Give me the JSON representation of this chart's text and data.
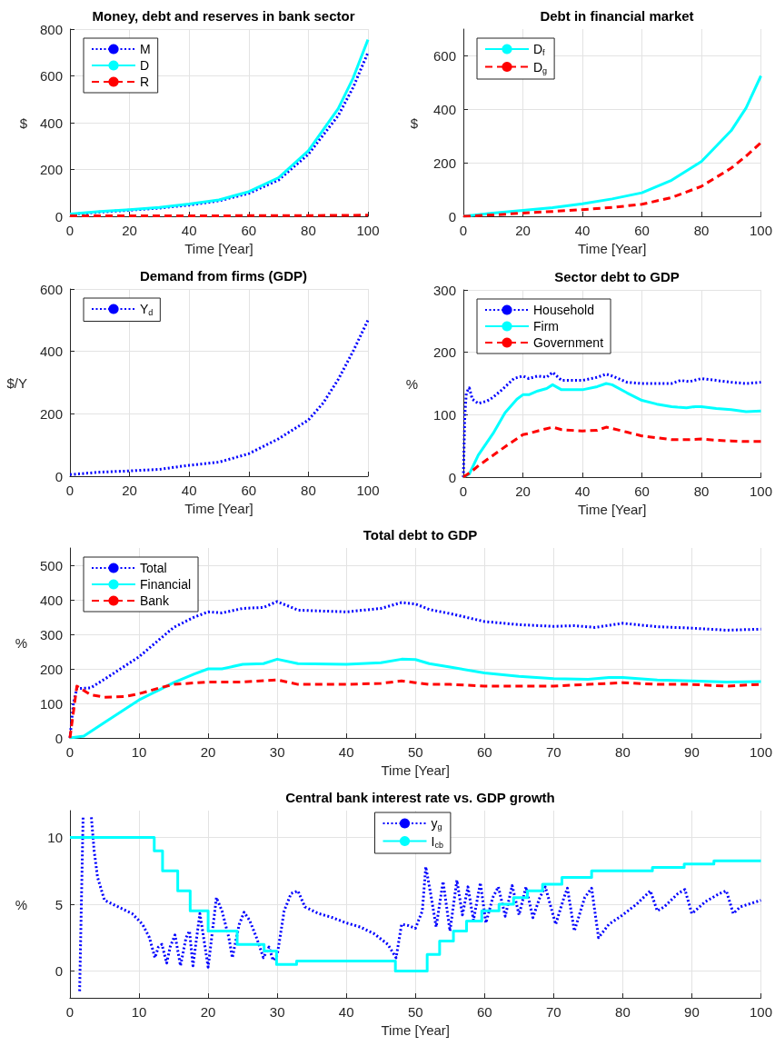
{
  "chart_data": [
    {
      "type": "line",
      "title": "Money, debt and reserves in bank sector",
      "xlabel": "Time [Year]",
      "ylabel": "$",
      "xlim": [
        0,
        100
      ],
      "xticks": [
        0,
        20,
        40,
        60,
        80,
        100
      ],
      "ylim": [
        0,
        800
      ],
      "yticks": [
        0,
        200,
        400,
        600,
        800
      ],
      "grid": true,
      "legend": "top left",
      "x": [
        0,
        10,
        20,
        30,
        40,
        50,
        60,
        70,
        80,
        90,
        95,
        100
      ],
      "series": [
        {
          "name": "M",
          "color": "#0000ff",
          "line_style": "dotted",
          "values": [
            8,
            18,
            26,
            35,
            48,
            66,
            98,
            155,
            265,
            430,
            550,
            700
          ]
        },
        {
          "name": "D",
          "color": "#00ffff",
          "line_style": "solid",
          "values": [
            10,
            20,
            28,
            38,
            52,
            70,
            105,
            165,
            280,
            460,
            590,
            755
          ]
        },
        {
          "name": "R",
          "color": "#ff0000",
          "line_style": "dashed",
          "values": [
            2,
            2,
            2,
            2,
            2,
            2,
            3,
            3,
            3,
            4,
            4,
            5
          ]
        }
      ]
    },
    {
      "type": "line",
      "title": "Debt in financial market",
      "xlabel": "Time [Year]",
      "ylabel": "$",
      "xlim": [
        0,
        100
      ],
      "xticks": [
        0,
        20,
        40,
        60,
        80,
        100
      ],
      "ylim": [
        0,
        700
      ],
      "yticks": [
        0,
        200,
        400,
        600
      ],
      "grid": true,
      "legend": "top left",
      "x": [
        0,
        10,
        20,
        30,
        40,
        50,
        60,
        70,
        80,
        90,
        95,
        100
      ],
      "series": [
        {
          "name": "D$_{f}$",
          "color": "#00ffff",
          "line_style": "solid",
          "values": [
            0,
            12,
            22,
            32,
            47,
            65,
            88,
            135,
            205,
            320,
            405,
            525
          ]
        },
        {
          "name": "D$_{g}$",
          "color": "#ff0000",
          "line_style": "dashed",
          "values": [
            0,
            5,
            12,
            18,
            25,
            33,
            45,
            70,
            112,
            180,
            225,
            275
          ]
        }
      ]
    },
    {
      "type": "line",
      "title": "Demand from firms (GDP)",
      "xlabel": "Time [Year]",
      "ylabel": "$/Y",
      "xlim": [
        0,
        100
      ],
      "xticks": [
        0,
        20,
        40,
        60,
        80,
        100
      ],
      "ylim": [
        0,
        600
      ],
      "yticks": [
        0,
        200,
        400,
        600
      ],
      "grid": true,
      "legend": "top left",
      "x": [
        0,
        10,
        20,
        30,
        40,
        50,
        60,
        70,
        80,
        85,
        90,
        95,
        100
      ],
      "series": [
        {
          "name": "Y$_{d}$",
          "color": "#0000ff",
          "line_style": "dotted",
          "values": [
            5,
            13,
            17,
            22,
            35,
            45,
            72,
            120,
            180,
            235,
            310,
            400,
            500
          ]
        }
      ]
    },
    {
      "type": "line",
      "title": "Sector debt to GDP",
      "xlabel": "Time [Year]",
      "ylabel": "%",
      "xlim": [
        0,
        100
      ],
      "xticks": [
        0,
        20,
        40,
        60,
        80,
        100
      ],
      "ylim": [
        0,
        300
      ],
      "yticks": [
        0,
        100,
        200,
        300
      ],
      "grid": true,
      "legend": "top left",
      "series": [
        {
          "name": "Household",
          "color": "#0000ff",
          "line_style": "dotted",
          "x": [
            0,
            0.5,
            1,
            2,
            3,
            5,
            8,
            10,
            13,
            17,
            20,
            22,
            25,
            28,
            30,
            33,
            40,
            45,
            48,
            50,
            55,
            60,
            65,
            70,
            73,
            76,
            80,
            85,
            90,
            95,
            100
          ],
          "values": [
            0,
            100,
            135,
            143,
            125,
            118,
            122,
            128,
            140,
            158,
            162,
            158,
            162,
            160,
            168,
            155,
            155,
            160,
            165,
            162,
            152,
            150,
            150,
            150,
            155,
            153,
            158,
            155,
            152,
            150,
            152
          ]
        },
        {
          "name": "Firm",
          "color": "#00ffff",
          "line_style": "solid",
          "x": [
            0,
            2,
            5,
            10,
            14,
            18,
            20,
            22,
            25,
            28,
            30,
            33,
            40,
            45,
            48,
            50,
            55,
            60,
            65,
            70,
            72,
            75,
            78,
            80,
            85,
            90,
            95,
            100
          ],
          "values": [
            0,
            5,
            35,
            70,
            103,
            125,
            132,
            132,
            138,
            142,
            148,
            140,
            140,
            145,
            150,
            148,
            135,
            123,
            117,
            113,
            112,
            111,
            113,
            113,
            110,
            108,
            105,
            106
          ]
        },
        {
          "name": "Government",
          "color": "#ff0000",
          "line_style": "dashed",
          "x": [
            0,
            3,
            5,
            10,
            15,
            20,
            22,
            25,
            30,
            33,
            40,
            45,
            48,
            50,
            55,
            60,
            65,
            70,
            75,
            80,
            85,
            90,
            95,
            100
          ],
          "values": [
            0,
            10,
            18,
            35,
            52,
            68,
            70,
            74,
            80,
            76,
            74,
            75,
            80,
            78,
            72,
            66,
            63,
            60,
            60,
            61,
            59,
            58,
            57,
            57
          ]
        }
      ]
    },
    {
      "type": "line",
      "title": "Total debt to GDP",
      "xlabel": "Time [Year]",
      "ylabel": "%",
      "xlim": [
        0,
        100
      ],
      "xticks": [
        0,
        10,
        20,
        30,
        40,
        50,
        60,
        70,
        80,
        90,
        100
      ],
      "ylim": [
        0,
        550
      ],
      "yticks": [
        0,
        100,
        200,
        300,
        400,
        500
      ],
      "grid": true,
      "legend": "top left",
      "series": [
        {
          "name": "Total",
          "color": "#0000ff",
          "line_style": "dotted",
          "x": [
            0,
            0.5,
            1,
            3,
            5,
            10,
            15,
            18,
            20,
            22,
            25,
            28,
            30,
            33,
            40,
            45,
            48,
            50,
            52,
            55,
            60,
            65,
            70,
            73,
            76,
            80,
            85,
            90,
            95,
            100
          ],
          "values": [
            0,
            100,
            143,
            145,
            170,
            235,
            320,
            350,
            365,
            362,
            375,
            378,
            395,
            370,
            365,
            375,
            392,
            388,
            372,
            360,
            337,
            328,
            323,
            325,
            320,
            332,
            322,
            318,
            312,
            315
          ]
        },
        {
          "name": "Financial",
          "color": "#00ffff",
          "line_style": "solid",
          "x": [
            0,
            2,
            5,
            10,
            13,
            15,
            18,
            20,
            22,
            25,
            28,
            30,
            33,
            40,
            45,
            48,
            50,
            52,
            55,
            60,
            65,
            70,
            75,
            78,
            80,
            85,
            90,
            95,
            100
          ],
          "values": [
            0,
            5,
            45,
            110,
            140,
            160,
            185,
            200,
            200,
            213,
            215,
            228,
            215,
            213,
            218,
            228,
            227,
            215,
            205,
            188,
            178,
            172,
            170,
            175,
            175,
            168,
            165,
            162,
            163
          ]
        },
        {
          "name": "Bank",
          "color": "#ff0000",
          "line_style": "dashed",
          "x": [
            0,
            1,
            3,
            5,
            8,
            10,
            13,
            15,
            20,
            25,
            30,
            33,
            40,
            45,
            48,
            50,
            52,
            55,
            60,
            70,
            75,
            80,
            85,
            90,
            95,
            100
          ],
          "values": [
            0,
            150,
            125,
            118,
            120,
            128,
            145,
            155,
            162,
            162,
            168,
            155,
            155,
            158,
            165,
            160,
            155,
            155,
            150,
            150,
            155,
            160,
            155,
            155,
            150,
            155
          ]
        }
      ]
    },
    {
      "type": "line",
      "title": "Central bank interest rate vs. GDP growth",
      "xlabel": "Time [Year]",
      "ylabel": "%",
      "xlim": [
        0,
        100
      ],
      "xticks": [
        0,
        10,
        20,
        30,
        40,
        50,
        60,
        70,
        80,
        90,
        100
      ],
      "ylim": [
        -2,
        12
      ],
      "yticks": [
        0,
        5,
        10
      ],
      "grid": true,
      "legend": "top",
      "series": [
        {
          "name": "y$_{g}$",
          "color": "#0000ff",
          "line_style": "dotted",
          "x": [
            1.4,
            1.9,
            2.5,
            3.1,
            3.5,
            4,
            5,
            7,
            9,
            10.5,
            11.5,
            12.3,
            12.8,
            13.3,
            14,
            14.5,
            15.2,
            16,
            16.8,
            17.3,
            17.8,
            18.8,
            19.2,
            20,
            21.2,
            22,
            23,
            23.5,
            24.5,
            25.2,
            26,
            27,
            28,
            28.8,
            29.4,
            30,
            31,
            32,
            33,
            34,
            36,
            38,
            40,
            42,
            44,
            46,
            47.2,
            48,
            49,
            50,
            51,
            51.5,
            52.3,
            53,
            54,
            55,
            56,
            56.8,
            57.6,
            58.4,
            59.4,
            60.2,
            61.2,
            62,
            63,
            64,
            65,
            66,
            67,
            68,
            68.8,
            70.3,
            71.5,
            72,
            73,
            74.5,
            75.5,
            76.5,
            78,
            80,
            82,
            84,
            85,
            86,
            88,
            89,
            90,
            92,
            94,
            95,
            96,
            97,
            100
          ],
          "values": [
            -1.5,
            11.5,
            null,
            11.5,
            9,
            7,
            5.3,
            4.8,
            4.3,
            3.5,
            2.5,
            1.0,
            1.8,
            2.0,
            0.6,
            1.8,
            2.7,
            0.4,
            2.5,
            3.0,
            0.4,
            4.3,
            3.0,
            0.3,
            5.5,
            4.5,
            2.5,
            1.0,
            3.5,
            4.4,
            3.8,
            2.5,
            1.0,
            1.8,
            0.8,
            1.2,
            4.5,
            5.8,
            6.0,
            4.8,
            4.3,
            4.0,
            3.6,
            3.3,
            2.8,
            2.0,
            1.0,
            3.5,
            3.4,
            3.2,
            4.5,
            7.8,
            5.5,
            3.3,
            6.7,
            3.0,
            6.8,
            4.2,
            6.3,
            3.8,
            6.6,
            3.6,
            5.5,
            6.3,
            4.1,
            6.4,
            4.2,
            6.3,
            4.0,
            5.5,
            6.3,
            3.5,
            5.5,
            6.2,
            3.0,
            5.5,
            6.2,
            2.5,
            3.5,
            4.2,
            5.0,
            6.0,
            4.5,
            4.8,
            5.8,
            6.1,
            4.3,
            5.2,
            5.8,
            6.0,
            4.3,
            4.8,
            5.3
          ]
        },
        {
          "name": "I$_{cb}$",
          "color": "#00ffff",
          "line_style": "solid",
          "type": "step",
          "x": [
            0,
            12.2,
            13.4,
            15.6,
            17.4,
            20,
            24.2,
            28.1,
            29.9,
            32.8,
            47.1,
            51.7,
            53.5,
            55.5,
            57.4,
            59.6,
            62.1,
            64.2,
            66.2,
            68.4,
            71.2,
            75.5,
            84.3,
            88.9,
            93.2,
            100
          ],
          "values": [
            10,
            9,
            7.5,
            6,
            4.5,
            3,
            2,
            1.5,
            0.5,
            0.75,
            0,
            1.25,
            2.25,
            3,
            3.75,
            4.5,
            5,
            5.5,
            6,
            6.5,
            7,
            7.5,
            7.75,
            8,
            8.25,
            8.25
          ]
        }
      ]
    }
  ]
}
